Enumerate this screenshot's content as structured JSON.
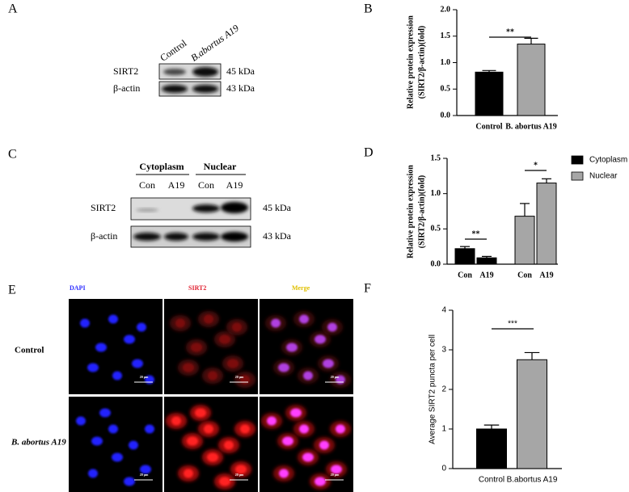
{
  "panels": [
    "A",
    "B",
    "C",
    "D",
    "E",
    "F"
  ],
  "blot_a": {
    "lanes": [
      "Control",
      "B.abortus A19"
    ],
    "rows": [
      "SIRT2",
      "β-actin"
    ],
    "sizes": [
      "45 kDa",
      "43 kDa"
    ]
  },
  "blot_c": {
    "groups": [
      "Cytoplasm",
      "Nuclear"
    ],
    "lanes": [
      "Con",
      "A19",
      "Con",
      "A19"
    ],
    "rows": [
      "SIRT2",
      "β-actin"
    ],
    "sizes": [
      "45 kDa",
      "43 kDa"
    ]
  },
  "microscopy": {
    "channels": [
      "DAPI",
      "SIRT2",
      "Merge"
    ],
    "rows": [
      "Control",
      "B. abortus A19"
    ],
    "scale_bar": "20 μm"
  },
  "chart_data": [
    {
      "type": "bar",
      "y_label": [
        "Relative protein expression",
        "(SIRT2/β-actin)(fold)"
      ],
      "categories": [
        "Control",
        "B. abortus A19"
      ],
      "values": [
        0.82,
        1.35
      ],
      "errors": [
        0.03,
        0.11
      ],
      "colors": [
        "#000000",
        "#a6a6a6"
      ],
      "annotations": [
        "**"
      ],
      "ylim": [
        0,
        2
      ],
      "yticks": [
        {
          "value": 0,
          "label": "0.0"
        },
        {
          "value": 0.5,
          "label": "0.5"
        },
        {
          "value": 1,
          "label": "1.0"
        },
        {
          "value": 1.5,
          "label": "1.5"
        },
        {
          "value": 2,
          "label": "2.0"
        }
      ]
    },
    {
      "type": "bar",
      "y_label": [
        "Relative protein expression",
        "(SIRT2/β-actin)(fold)"
      ],
      "categories": [
        "Con",
        "A19",
        "Con",
        "A19"
      ],
      "series": [
        {
          "name": "Cytoplasm",
          "color": "#000000",
          "values": [
            0.22,
            0.09,
            null,
            null
          ],
          "errors": [
            0.03,
            0.02,
            null,
            null
          ]
        },
        {
          "name": "Nuclear",
          "color": "#a6a6a6",
          "values": [
            null,
            null,
            0.68,
            1.15
          ],
          "errors": [
            null,
            null,
            0.18,
            0.06
          ]
        }
      ],
      "annotations": [
        "**",
        "*"
      ],
      "ylim": [
        0,
        1.5
      ],
      "yticks": [
        {
          "value": 0,
          "label": "0.0"
        },
        {
          "value": 0.5,
          "label": "0.5"
        },
        {
          "value": 1,
          "label": "1.0"
        },
        {
          "value": 1.5,
          "label": "1.5"
        }
      ]
    },
    {
      "type": "bar",
      "y_label": [
        "Average SIRT2 puncta per cell"
      ],
      "categories": [
        "Control",
        "B.abortus A19"
      ],
      "values": [
        1.0,
        2.75
      ],
      "errors": [
        0.1,
        0.18
      ],
      "colors": [
        "#000000",
        "#a6a6a6"
      ],
      "annotations": [
        "***"
      ],
      "ylim": [
        0,
        4
      ],
      "yticks": [
        0,
        1,
        2,
        3,
        4
      ]
    }
  ]
}
